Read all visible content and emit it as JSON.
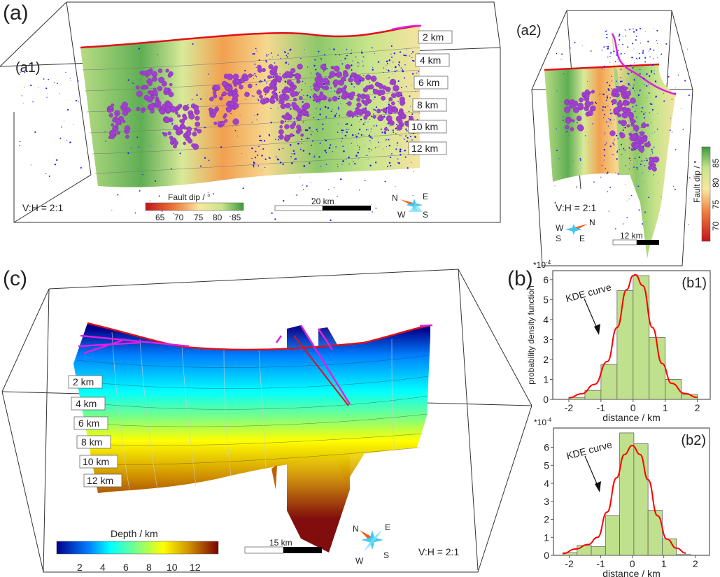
{
  "panels": {
    "a": "(a)",
    "a1": "(a1)",
    "a2": "(a2)",
    "b": "(b)",
    "b1": "(b1)",
    "b2": "(b2)",
    "c": "(c)"
  },
  "a1": {
    "depth_labels": [
      "2 km",
      "4 km",
      "6 km",
      "8 km",
      "10 km",
      "12 km"
    ],
    "ratio": "V:H = 2:1",
    "colorbar": {
      "title": "Fault dip / °",
      "ticks": [
        "65",
        "70",
        "75",
        "80",
        "85"
      ],
      "colors": [
        "#c0141c",
        "#f07a3a",
        "#f8e8a0",
        "#c8e48c",
        "#3c9a3c"
      ]
    },
    "scale_bar": "20 km",
    "compass": {
      "n": "N",
      "e": "E",
      "s": "S",
      "w": "W"
    }
  },
  "a2": {
    "ratio": "V:H = 2:1",
    "colorbar": {
      "title": "Fault dip / °",
      "ticks": [
        "70",
        "75",
        "80",
        "85"
      ]
    },
    "scale_bar": "12 km",
    "compass": {
      "n": "N",
      "e": "E",
      "s": "S",
      "w": "W"
    }
  },
  "c": {
    "depth_labels": [
      "2 km",
      "4 km",
      "6 km",
      "8 km",
      "10 km",
      "12 km"
    ],
    "ratio": "V:H = 2:1",
    "colorbar": {
      "title": "Depth / km",
      "ticks": [
        "2",
        "4",
        "6",
        "8",
        "10",
        "12"
      ],
      "colors": [
        "#00008b",
        "#0080ff",
        "#00ffff",
        "#80ff80",
        "#ffff00",
        "#d09000",
        "#7a0000"
      ]
    },
    "scale_bar": "15 km",
    "compass": {
      "n": "N",
      "e": "E",
      "s": "S",
      "w": "W"
    }
  },
  "colors": {
    "fault_trace": "#e0101a",
    "fault_trace_end": "#e020e0",
    "events_blue": "#1a1aff",
    "clusters_purple": "#a040d0",
    "hist_fill": "#bfe08c",
    "kde": "#ff0000"
  },
  "chart_data": [
    {
      "type": "bar",
      "title": "(b1)",
      "multiplier": "*10",
      "multiplier_exp": "-4",
      "xlabel": "distance / km",
      "ylabel": "probability density function",
      "xlim": [
        -2.5,
        2.4
      ],
      "ylim": [
        0,
        6.45
      ],
      "xticks": [
        "-2",
        "-1",
        "0",
        "1",
        "2"
      ],
      "yticks": [
        "0",
        "1",
        "2",
        "3",
        "4",
        "5",
        "6"
      ],
      "annotation": "KDE curve",
      "bins": [
        [
          -2,
          -1.5
        ],
        [
          -1.5,
          -1
        ],
        [
          -1,
          -0.5
        ],
        [
          -0.5,
          0
        ],
        [
          0,
          0.5
        ],
        [
          0.5,
          1
        ],
        [
          1,
          1.5
        ],
        [
          1.5,
          2
        ]
      ],
      "values": [
        0.1,
        0.45,
        1.75,
        5.45,
        6.2,
        3.1,
        1.0,
        0.25
      ],
      "kde": {
        "x": [
          -2,
          -1.6,
          -1.2,
          -0.8,
          -0.5,
          -0.2,
          0,
          0.07,
          0.3,
          0.6,
          0.9,
          1.2,
          1.6,
          2
        ],
        "y": [
          0.08,
          0.28,
          0.75,
          1.9,
          3.6,
          5.5,
          6.2,
          6.25,
          5.7,
          3.6,
          1.8,
          0.8,
          0.3,
          0.1
        ]
      }
    },
    {
      "type": "bar",
      "title": "(b2)",
      "multiplier": "*10",
      "multiplier_exp": "-4",
      "xlabel": "distance / km",
      "ylabel": "",
      "xlim": [
        -2.5,
        2.45
      ],
      "ylim": [
        0,
        7.07
      ],
      "xticks": [
        "-2",
        "-1",
        "0",
        "1",
        "2"
      ],
      "yticks": [
        "0",
        "1",
        "2",
        "3",
        "4",
        "5",
        "6"
      ],
      "annotation": "KDE curve",
      "bins": [
        [
          -2.2,
          -1.75
        ],
        [
          -1.75,
          -1.3
        ],
        [
          -1.3,
          -0.85
        ],
        [
          -0.85,
          -0.4
        ],
        [
          -0.4,
          0.05
        ],
        [
          0.05,
          0.5
        ],
        [
          0.5,
          0.95
        ],
        [
          0.95,
          1.4
        ],
        [
          1.4,
          1.85
        ]
      ],
      "values": [
        0.15,
        0.55,
        0.48,
        2.2,
        6.8,
        6.2,
        2.5,
        0.92,
        0.05
      ],
      "kde": {
        "x": [
          -2.2,
          -1.8,
          -1.4,
          -1.1,
          -0.8,
          -0.5,
          -0.25,
          0,
          0.25,
          0.5,
          0.8,
          1.1,
          1.4,
          1.7
        ],
        "y": [
          0.1,
          0.35,
          0.6,
          1.0,
          2.4,
          4.3,
          5.6,
          6.1,
          5.6,
          4.2,
          2.2,
          0.9,
          0.4,
          0.12
        ]
      }
    }
  ]
}
